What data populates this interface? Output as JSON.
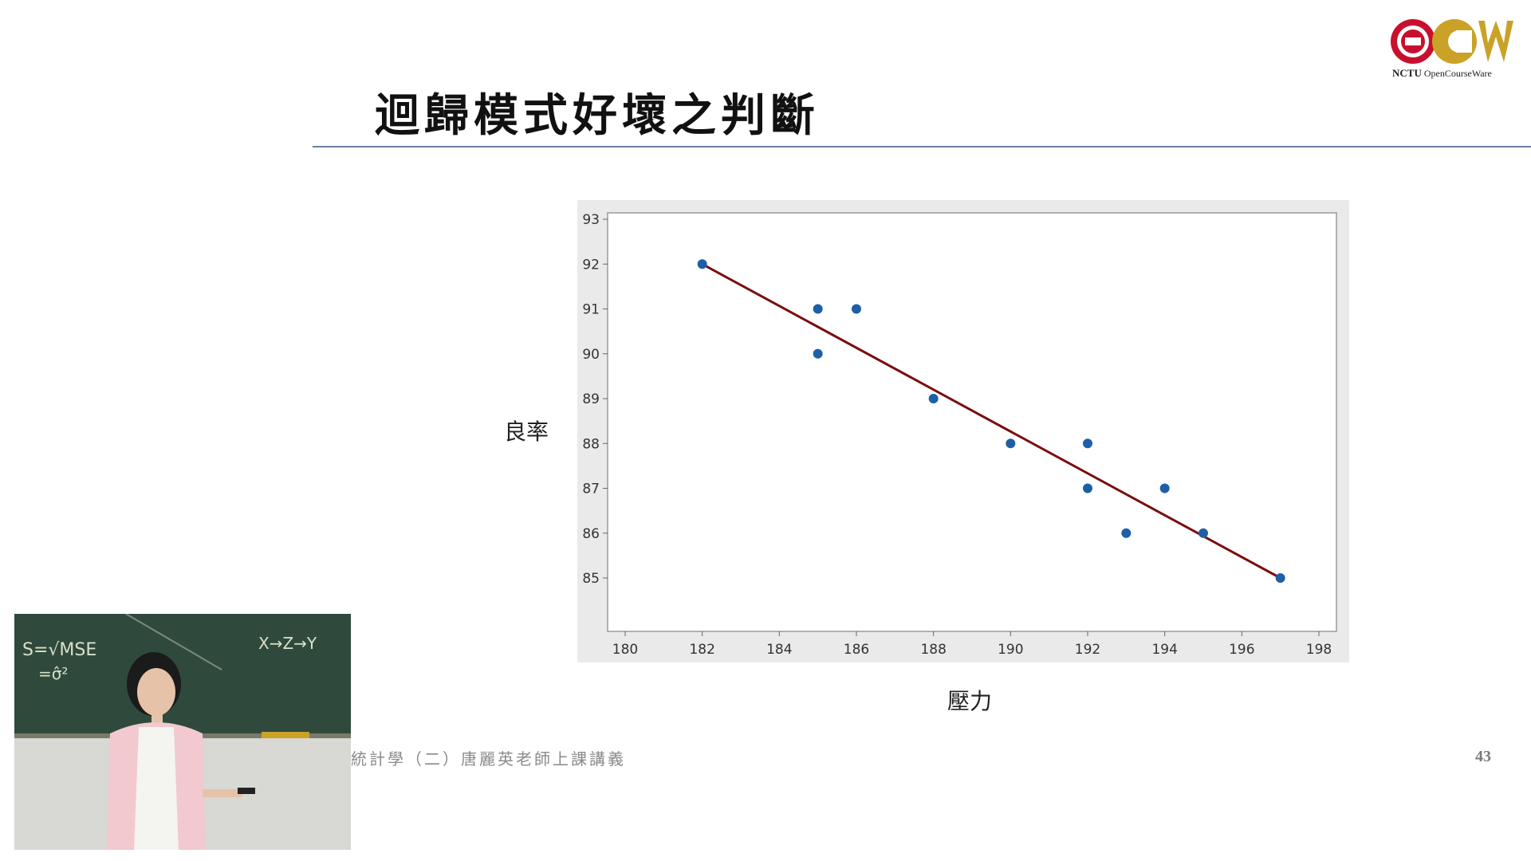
{
  "slide": {
    "title": "迴歸模式好壞之判斷",
    "footer": "統計學（二）唐麗英老師上課講義",
    "page_number": "43"
  },
  "logo": {
    "caption_bold": "NCTU",
    "caption_rest": "OpenCourseWare",
    "colors": {
      "red": "#c8102e",
      "gold": "#c9a227"
    }
  },
  "video_inset": {
    "board_text": [
      "S=√MSE",
      "=σ̂²",
      "X→Z→Y"
    ]
  },
  "chart_data": {
    "type": "scatter",
    "xlabel": "壓力",
    "ylabel": "良率",
    "xlim": [
      180,
      198
    ],
    "ylim": [
      85,
      93
    ],
    "xticks": [
      180,
      182,
      184,
      186,
      188,
      190,
      192,
      194,
      196,
      198
    ],
    "yticks": [
      85,
      86,
      87,
      88,
      89,
      90,
      91,
      92,
      93
    ],
    "points": [
      {
        "x": 182,
        "y": 92
      },
      {
        "x": 185,
        "y": 91
      },
      {
        "x": 185,
        "y": 90
      },
      {
        "x": 186,
        "y": 91
      },
      {
        "x": 188,
        "y": 89
      },
      {
        "x": 190,
        "y": 88
      },
      {
        "x": 192,
        "y": 88
      },
      {
        "x": 192,
        "y": 87
      },
      {
        "x": 193,
        "y": 86
      },
      {
        "x": 194,
        "y": 87
      },
      {
        "x": 195,
        "y": 86
      },
      {
        "x": 197,
        "y": 85
      }
    ],
    "fit_line": {
      "x1": 182,
      "y1": 92,
      "x2": 197,
      "y2": 85
    },
    "point_color": "#1f5fa8",
    "line_color": "#7a0e0e",
    "grid": false
  }
}
